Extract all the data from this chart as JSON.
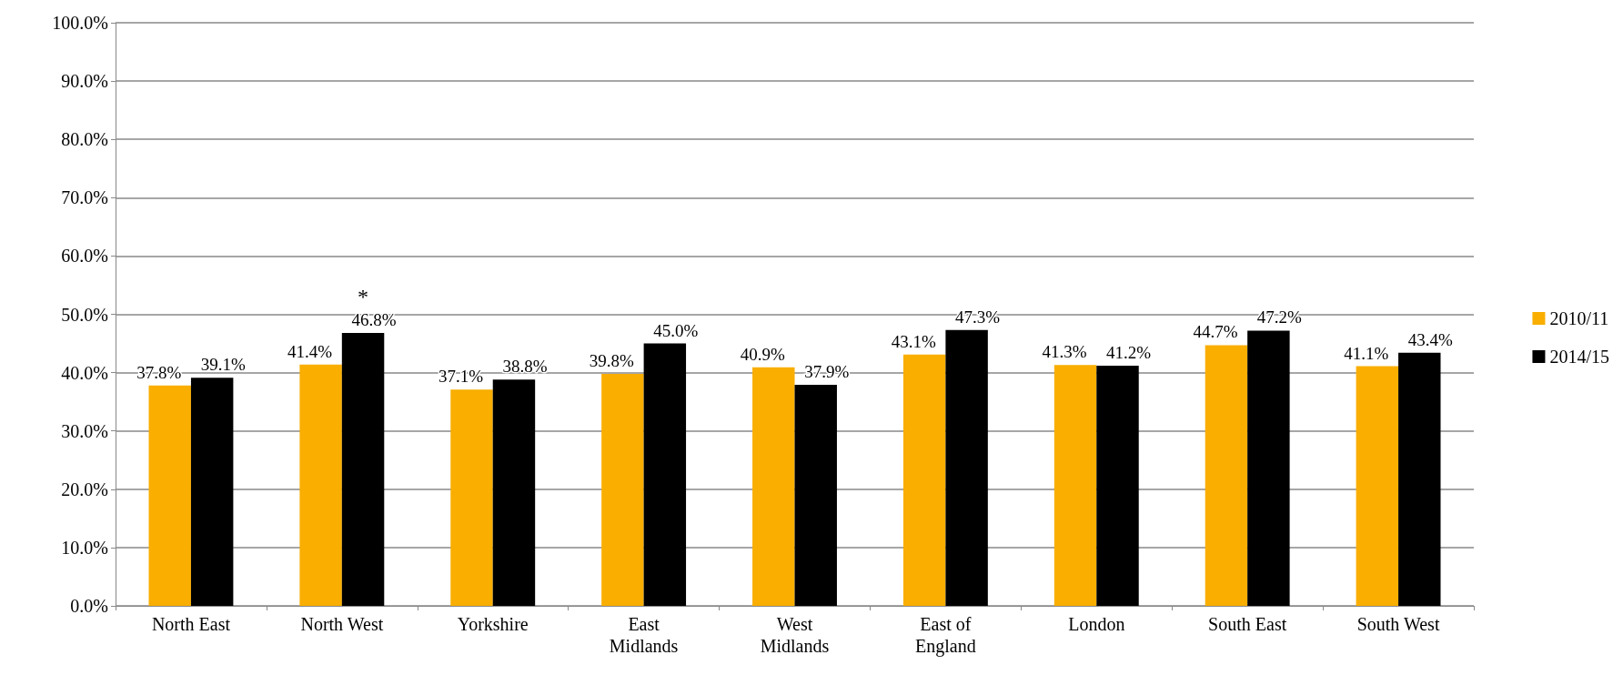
{
  "chart_data": {
    "type": "bar",
    "categories": [
      "North East",
      "North West",
      "Yorkshire",
      "East\nMidlands",
      "West\nMidlands",
      "East of\nEngland",
      "London",
      "South East",
      "South West"
    ],
    "series": [
      {
        "name": "2010/11",
        "color": "#f9ae00",
        "values": [
          37.8,
          41.4,
          37.1,
          39.8,
          40.9,
          43.1,
          41.3,
          44.7,
          41.1
        ],
        "value_labels": [
          "37.8%",
          "41.4%",
          "37.1%",
          "39.8%",
          "40.9%",
          "43.1%",
          "41.3%",
          "44.7%",
          "41.1%"
        ]
      },
      {
        "name": "2014/15",
        "color": "#000000",
        "values": [
          39.1,
          46.8,
          38.8,
          45.0,
          37.9,
          47.3,
          41.2,
          47.2,
          43.4
        ],
        "value_labels": [
          "39.1%",
          "46.8%",
          "38.8%",
          "45.0%",
          "37.9%",
          "47.3%",
          "41.2%",
          "47.2%",
          "43.4%"
        ]
      }
    ],
    "ylim": [
      0,
      100
    ],
    "yticks": [
      {
        "value": 0,
        "label": "0.0%"
      },
      {
        "value": 10,
        "label": "10.0%"
      },
      {
        "value": 20,
        "label": "20.0%"
      },
      {
        "value": 30,
        "label": "30.0%"
      },
      {
        "value": 40,
        "label": "40.0%"
      },
      {
        "value": 50,
        "label": "50.0%"
      },
      {
        "value": 60,
        "label": "60.0%"
      },
      {
        "value": 70,
        "label": "70.0%"
      },
      {
        "value": 80,
        "label": "80.0%"
      },
      {
        "value": 90,
        "label": "90.0%"
      },
      {
        "value": 100,
        "label": "100.0%"
      }
    ],
    "annotations": [
      {
        "text": "*",
        "x": "North West",
        "y": 46.8
      }
    ],
    "grid": "y",
    "legend": "right"
  }
}
